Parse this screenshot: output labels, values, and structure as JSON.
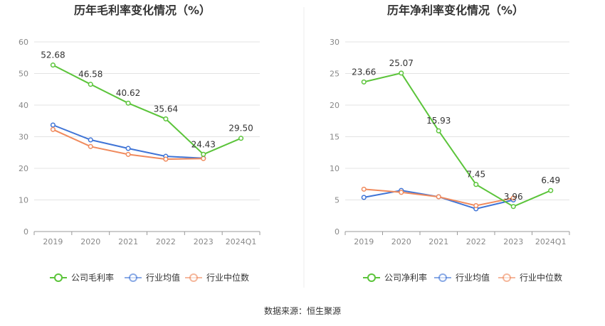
{
  "source": "数据来源：恒生聚源",
  "colors": {
    "company": "#5bc43a",
    "avg": "#3f74d6",
    "median": "#f08a5d",
    "grid": "#e3e3e3",
    "axis": "#999999"
  },
  "chart_data": [
    {
      "type": "line",
      "title": "历年毛利率变化情况（%）",
      "categories": [
        "2019",
        "2020",
        "2021",
        "2022",
        "2023",
        "2024Q1"
      ],
      "ylim": [
        0,
        60
      ],
      "yticks": [
        0,
        10,
        20,
        30,
        40,
        50,
        60
      ],
      "grid": true,
      "legend_position": "bottom",
      "series": [
        {
          "name": "公司毛利率",
          "color_key": "company",
          "labels": true,
          "values": [
            52.68,
            46.58,
            40.62,
            35.64,
            24.43,
            29.5
          ],
          "value_labels": [
            "52.68",
            "46.58",
            "40.62",
            "35.64",
            "24.43",
            "29.50"
          ]
        },
        {
          "name": "行业均值",
          "color_key": "avg",
          "labels": false,
          "values": [
            33.7,
            29.0,
            26.3,
            23.8,
            23.2,
            null
          ]
        },
        {
          "name": "行业中位数",
          "color_key": "median",
          "labels": false,
          "values": [
            32.3,
            26.9,
            24.4,
            22.9,
            23.1,
            null
          ]
        }
      ]
    },
    {
      "type": "line",
      "title": "历年净利率变化情况（%）",
      "categories": [
        "2019",
        "2020",
        "2021",
        "2022",
        "2023",
        "2024Q1"
      ],
      "ylim": [
        0,
        30
      ],
      "yticks": [
        0,
        5,
        10,
        15,
        20,
        25,
        30
      ],
      "grid": true,
      "legend_position": "bottom",
      "series": [
        {
          "name": "公司净利率",
          "color_key": "company",
          "labels": true,
          "values": [
            23.66,
            25.07,
            15.93,
            7.45,
            3.96,
            6.49
          ],
          "value_labels": [
            "23.66",
            "25.07",
            "15.93",
            "7.45",
            "3.96",
            "6.49"
          ]
        },
        {
          "name": "行业均值",
          "color_key": "avg",
          "labels": false,
          "values": [
            5.4,
            6.5,
            5.5,
            3.6,
            5.0,
            null
          ]
        },
        {
          "name": "行业中位数",
          "color_key": "median",
          "labels": false,
          "values": [
            6.7,
            6.2,
            5.5,
            4.1,
            5.3,
            null
          ]
        }
      ]
    }
  ]
}
